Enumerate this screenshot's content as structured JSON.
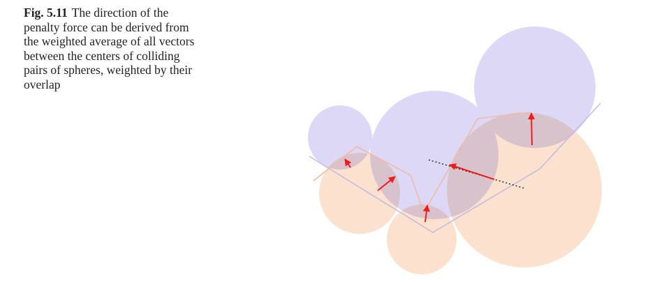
{
  "caption": {
    "label": "Fig. 5.11",
    "text": "The direction of the penalty force can be derived from the weighted average of all vectors between the centers of colliding pairs of spheres, weighted by their overlap"
  },
  "colors": {
    "sphere_blue": "#dcd8f5",
    "sphere_orange": "#fce1cf",
    "overlap": "#d8c3cd",
    "arrow": "#ee1c1c",
    "outline_blue": "#c4bbe0",
    "outline_orange": "#f2b9a6",
    "dotted_line": "#231f20"
  }
}
